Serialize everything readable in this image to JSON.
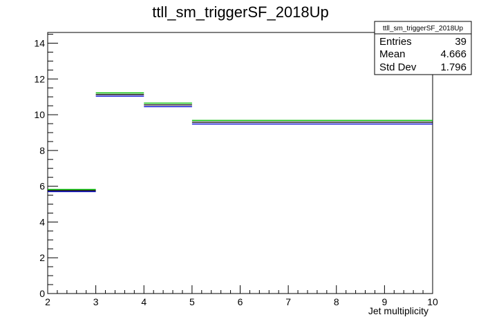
{
  "chart_data": {
    "type": "line",
    "title": "ttll_sm_triggerSF_2018Up",
    "xlabel": "Jet multiplicity",
    "ylabel": "",
    "xlim": [
      2,
      10
    ],
    "ylim": [
      0,
      14.6
    ],
    "x_ticks": [
      "2",
      "3",
      "4",
      "5",
      "6",
      "7",
      "8",
      "9",
      "10"
    ],
    "y_ticks": [
      "0",
      "2",
      "4",
      "6",
      "8",
      "10",
      "12",
      "14"
    ],
    "bins": [
      [
        2,
        3
      ],
      [
        3,
        4
      ],
      [
        4,
        5
      ],
      [
        5,
        10
      ]
    ],
    "series": [
      {
        "values": [
          5.82,
          11.22,
          10.65,
          9.68
        ],
        "color": "#00bb00"
      },
      {
        "values": [
          5.7,
          11.04,
          10.45,
          9.48
        ],
        "color": "#0000cc"
      },
      {
        "values": [
          5.76,
          11.13,
          10.55,
          9.58
        ],
        "color": "#000000"
      }
    ],
    "stats": {
      "title": "ttll_sm_triggerSF_2018Up",
      "rows": [
        {
          "label": "Entries",
          "value": "39"
        },
        {
          "label": "Mean",
          "value": "4.666"
        },
        {
          "label": "Std Dev",
          "value": "1.796"
        }
      ]
    }
  }
}
